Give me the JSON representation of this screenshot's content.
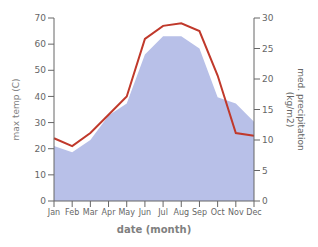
{
  "chart_data": {
    "type": "line",
    "categories": [
      "Jan",
      "Feb",
      "Mar",
      "Apr",
      "May",
      "Jun",
      "Jul",
      "Aug",
      "Sep",
      "Oct",
      "Nov",
      "Dec"
    ],
    "series": [
      {
        "type": "area",
        "axis": "y2",
        "color": "#b8c0e8",
        "values": [
          9,
          8,
          10,
          14,
          16,
          24,
          27,
          27,
          25,
          17,
          16,
          13
        ]
      },
      {
        "type": "line",
        "color": "#c0392b",
        "values": [
          24,
          21,
          26,
          33,
          40,
          62,
          67,
          68,
          65,
          48,
          26,
          25
        ]
      }
    ],
    "xlabel": "date (month)",
    "ylabel": "max temp (C)",
    "y2label": "med. precipitation\n(kg/m2)",
    "ylim": [
      0,
      70
    ],
    "yticks": [
      0,
      10,
      20,
      30,
      40,
      50,
      60,
      70
    ],
    "y2lim": [
      0,
      30
    ],
    "y2ticks": [
      0,
      5,
      10,
      15,
      20,
      25,
      30
    ],
    "grid": false
  }
}
